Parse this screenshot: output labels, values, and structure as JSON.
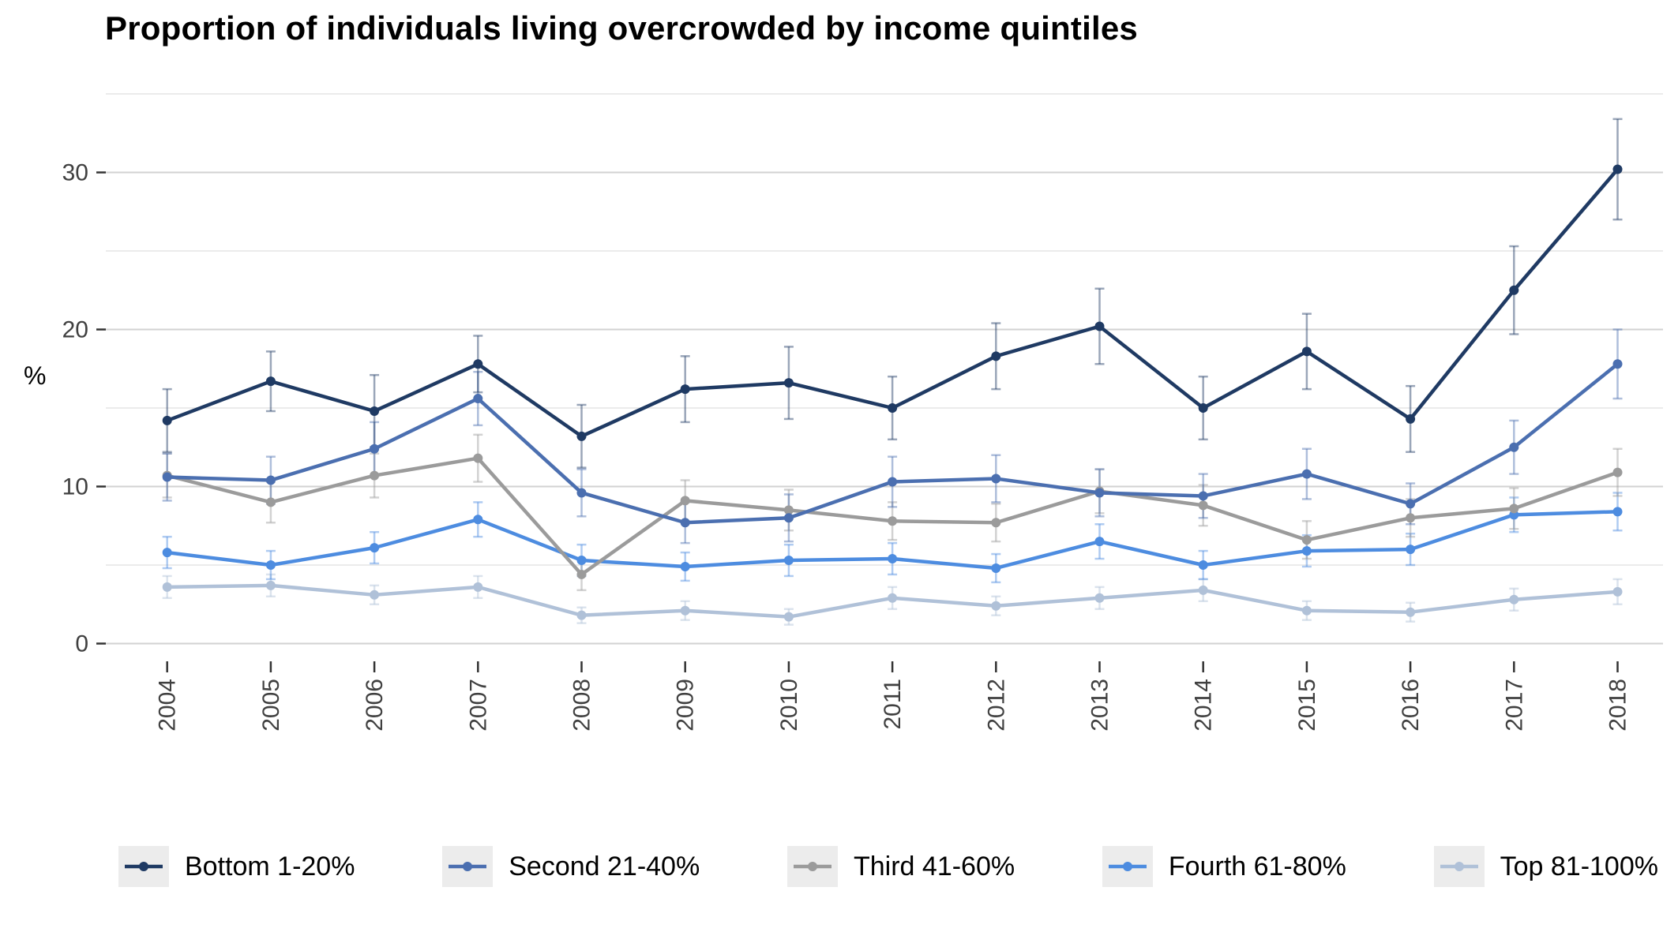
{
  "chart_data": {
    "type": "line",
    "title": "Proportion of individuals living overcrowded by income quintiles",
    "xlabel": "",
    "ylabel": "%",
    "x": [
      2004,
      2005,
      2006,
      2007,
      2008,
      2009,
      2010,
      2011,
      2012,
      2013,
      2014,
      2015,
      2016,
      2017,
      2018
    ],
    "yticks": [
      0,
      10,
      20,
      30
    ],
    "minor_yticks": [
      5,
      15,
      25,
      35
    ],
    "ylim": [
      -1.5,
      35.5
    ],
    "grid": "horizontal major and minor gridlines, white background",
    "legend_position": "bottom",
    "error_bars": true,
    "legend_key_bg": "#ececec",
    "grid_major_color": "#d2d2d2",
    "grid_minor_color": "#ebebeb",
    "axis_text_color": "#404040",
    "series": [
      {
        "name": "Bottom 1-20%",
        "color": "#1f3a63",
        "values": [
          14.2,
          16.7,
          14.8,
          17.8,
          13.2,
          16.2,
          16.6,
          15.0,
          18.3,
          20.2,
          15.0,
          18.6,
          14.3,
          22.5,
          30.2
        ],
        "errors": [
          2.0,
          1.9,
          2.3,
          1.8,
          2.0,
          2.1,
          2.3,
          2.0,
          2.1,
          2.4,
          2.0,
          2.4,
          2.1,
          2.8,
          3.2
        ]
      },
      {
        "name": "Second 21-40%",
        "color": "#4b6fb0",
        "values": [
          10.6,
          10.4,
          12.4,
          15.6,
          9.6,
          7.7,
          8.0,
          10.3,
          10.5,
          9.6,
          9.4,
          10.8,
          8.9,
          12.5,
          17.8
        ],
        "errors": [
          1.5,
          1.5,
          1.7,
          1.7,
          1.5,
          1.3,
          1.5,
          1.6,
          1.5,
          1.5,
          1.4,
          1.6,
          1.3,
          1.7,
          2.2
        ]
      },
      {
        "name": "Third 41-60%",
        "color": "#9b9b9b",
        "values": [
          10.7,
          9.0,
          10.7,
          11.8,
          4.4,
          9.1,
          8.5,
          7.8,
          7.7,
          9.7,
          8.8,
          6.6,
          8.0,
          8.6,
          10.9
        ],
        "errors": [
          1.4,
          1.3,
          1.4,
          1.5,
          1.0,
          1.3,
          1.3,
          1.2,
          1.2,
          1.4,
          1.3,
          1.2,
          1.2,
          1.3,
          1.5
        ]
      },
      {
        "name": "Fourth 61-80%",
        "color": "#4d8ce0",
        "values": [
          5.8,
          5.0,
          6.1,
          7.9,
          5.3,
          4.9,
          5.3,
          5.4,
          4.8,
          6.5,
          5.0,
          5.9,
          6.0,
          8.2,
          8.4
        ],
        "errors": [
          1.0,
          0.9,
          1.0,
          1.1,
          1.0,
          0.9,
          1.0,
          1.0,
          0.9,
          1.1,
          0.9,
          1.0,
          1.0,
          1.1,
          1.2
        ]
      },
      {
        "name": "Top 81-100%",
        "color": "#b0c1d8",
        "values": [
          3.6,
          3.7,
          3.1,
          3.6,
          1.8,
          2.1,
          1.7,
          2.9,
          2.4,
          2.9,
          3.4,
          2.1,
          2.0,
          2.8,
          3.3
        ],
        "errors": [
          0.7,
          0.7,
          0.6,
          0.7,
          0.5,
          0.6,
          0.5,
          0.7,
          0.6,
          0.7,
          0.7,
          0.6,
          0.6,
          0.7,
          0.8
        ]
      }
    ]
  }
}
